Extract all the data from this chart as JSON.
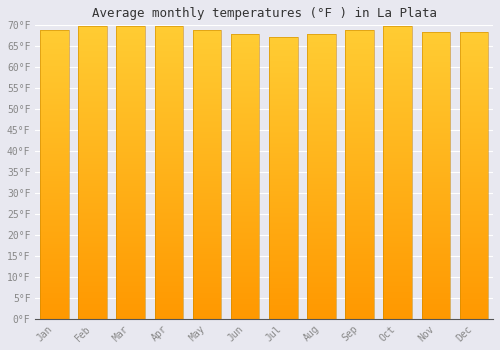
{
  "title": "Average monthly temperatures (°F ) in La Plata",
  "months": [
    "Jan",
    "Feb",
    "Mar",
    "Apr",
    "May",
    "Jun",
    "Jul",
    "Aug",
    "Sep",
    "Oct",
    "Nov",
    "Dec"
  ],
  "values": [
    68.9,
    69.8,
    69.8,
    69.8,
    68.9,
    67.8,
    67.1,
    67.8,
    68.9,
    69.8,
    68.5,
    68.5
  ],
  "ylim": [
    0,
    70
  ],
  "ytick_values": [
    0,
    5,
    10,
    15,
    20,
    25,
    30,
    35,
    40,
    45,
    50,
    55,
    60,
    65,
    70
  ],
  "ytick_labels": [
    "0°F",
    "5°F",
    "10°F",
    "15°F",
    "20°F",
    "25°F",
    "30°F",
    "35°F",
    "40°F",
    "45°F",
    "50°F",
    "55°F",
    "60°F",
    "65°F",
    "70°F"
  ],
  "bar_color_bottom": "#FF9800",
  "bar_color_top": "#FFCC33",
  "bar_edge_color": "#CC8800",
  "background_color": "#e8e8f0",
  "plot_bg_color": "#e8e8f0",
  "grid_color": "#ffffff",
  "title_fontsize": 9,
  "tick_fontsize": 7,
  "tick_color": "#888888",
  "bar_width": 0.75
}
